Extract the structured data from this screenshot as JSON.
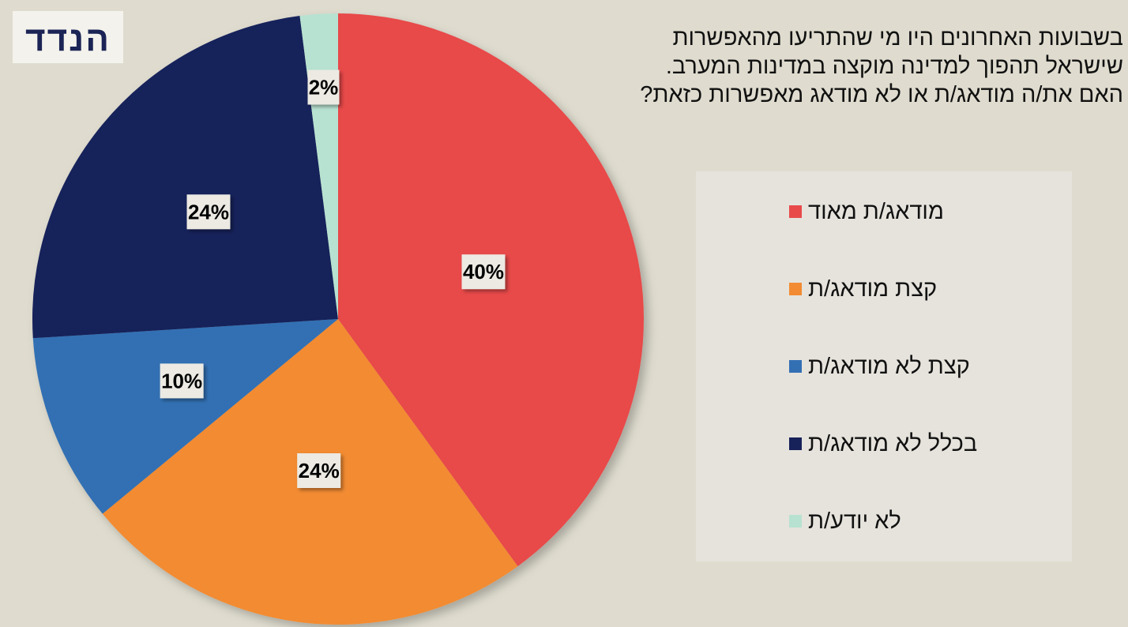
{
  "logo": {
    "text": "הנדד"
  },
  "chart_data": {
    "type": "pie",
    "title_lines": [
      "בשבועות האחרונים היו מי שהתריעו מהאפשרות",
      "שישראל תהפוך למדינה מוקצה במדינות המערב.",
      "האם את/ה מודאג/ת או לא מודאג מאפשרות כזאת?"
    ],
    "slices": [
      {
        "name": "מודאג/ת מאוד",
        "value": 40,
        "label": "40%",
        "color": "#e84a4a"
      },
      {
        "name": "קצת מודאג/ת",
        "value": 24,
        "label": "24%",
        "color": "#f28b32"
      },
      {
        "name": "קצת לא מודאג/ת",
        "value": 10,
        "label": "10%",
        "color": "#336fb3"
      },
      {
        "name": "בכלל לא מודאג/ת",
        "value": 24,
        "label": "24%",
        "color": "#17215a"
      },
      {
        "name": "לא יודע/ת",
        "value": 2,
        "label": "2%",
        "color": "#b7e2d1"
      }
    ],
    "legend_position": "right"
  }
}
